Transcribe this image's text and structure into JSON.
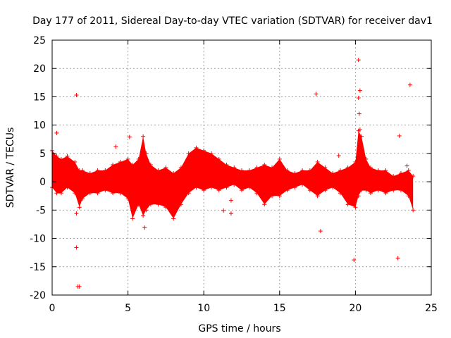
{
  "chart_data": {
    "type": "scatter",
    "title": "Day 177 of 2011, Sidereal Day-to-day VTEC variation (SDTVAR) for receiver dav1",
    "xlabel": "GPS time / hours",
    "ylabel": "SDTVAR / TECUs",
    "xlim": [
      0,
      25
    ],
    "ylim": [
      -20,
      25
    ],
    "xticks": [
      0,
      5,
      10,
      15,
      20,
      25
    ],
    "yticks": [
      -20,
      -15,
      -10,
      -5,
      0,
      5,
      10,
      15,
      20,
      25
    ],
    "xtick_labels": [
      "0",
      "5",
      "10",
      "15",
      "20",
      "25"
    ],
    "ytick_labels": [
      "-20",
      "-15",
      "-10",
      "-5",
      "0",
      "5",
      "10",
      "15",
      "20",
      "25"
    ],
    "grid": true,
    "marker": "+",
    "color": "#ff0000",
    "series": [
      {
        "name": "SDTVAR",
        "band_envelope": {
          "x": [
            0.0,
            0.3,
            0.6,
            1.0,
            1.5,
            1.8,
            2.0,
            2.5,
            3.0,
            3.5,
            4.0,
            4.5,
            5.0,
            5.3,
            5.7,
            6.0,
            6.2,
            6.5,
            7.0,
            7.5,
            8.0,
            8.5,
            9.0,
            9.5,
            10.0,
            10.5,
            11.0,
            11.5,
            12.0,
            12.5,
            13.0,
            13.5,
            14.0,
            14.5,
            15.0,
            15.5,
            16.0,
            16.5,
            17.0,
            17.5,
            18.0,
            18.5,
            19.0,
            19.5,
            20.0,
            20.2,
            20.4,
            20.7,
            21.0,
            21.5,
            22.0,
            22.5,
            23.0,
            23.5,
            23.8
          ],
          "upper": [
            5.5,
            4.5,
            4.0,
            4.5,
            3.5,
            2.0,
            2.0,
            1.5,
            2.0,
            2.0,
            3.0,
            3.5,
            4.0,
            3.0,
            4.0,
            8.0,
            5.0,
            3.0,
            2.0,
            2.5,
            1.5,
            2.5,
            5.0,
            6.0,
            5.5,
            5.0,
            4.0,
            3.0,
            2.5,
            2.0,
            2.0,
            2.5,
            3.0,
            2.5,
            4.0,
            2.0,
            1.5,
            2.0,
            2.0,
            3.5,
            2.5,
            1.5,
            2.0,
            2.5,
            3.5,
            9.0,
            8.0,
            4.0,
            2.5,
            2.0,
            2.0,
            1.0,
            1.5,
            2.0,
            1.0
          ],
          "lower": [
            -1.0,
            -2.0,
            -2.0,
            -1.0,
            -2.0,
            -4.5,
            -3.0,
            -2.0,
            -2.0,
            -1.5,
            -2.0,
            -2.0,
            -3.0,
            -6.5,
            -4.0,
            -6.0,
            -5.0,
            -4.0,
            -4.0,
            -4.5,
            -6.5,
            -4.0,
            -2.0,
            -1.0,
            -1.5,
            -1.0,
            -1.5,
            -1.0,
            -0.5,
            -1.5,
            -1.0,
            -2.0,
            -4.0,
            -2.5,
            -2.5,
            -1.5,
            -1.0,
            -0.5,
            -1.5,
            -2.5,
            -1.5,
            -1.0,
            -2.0,
            -4.0,
            -4.5,
            -2.5,
            -1.5,
            -1.5,
            -2.0,
            -1.5,
            -2.0,
            -1.5,
            -1.5,
            -2.5,
            -5.0
          ]
        },
        "outliers": {
          "x": [
            0.3,
            1.6,
            1.6,
            1.6,
            1.7,
            1.8,
            4.2,
            5.1,
            6.1,
            11.3,
            11.8,
            11.8,
            17.4,
            17.7,
            19.9,
            20.2,
            20.2,
            20.3,
            20.25,
            20.3,
            22.9,
            22.8,
            23.4,
            23.6,
            18.9
          ],
          "y": [
            8.6,
            15.3,
            -5.6,
            -11.6,
            -18.5,
            -18.5,
            6.2,
            7.9,
            -8.1,
            -5.1,
            -3.3,
            -5.6,
            15.5,
            -8.7,
            -13.8,
            21.5,
            14.8,
            16.1,
            12.0,
            9.2,
            8.1,
            -13.5,
            2.8,
            17.1,
            4.6
          ]
        }
      }
    ]
  }
}
